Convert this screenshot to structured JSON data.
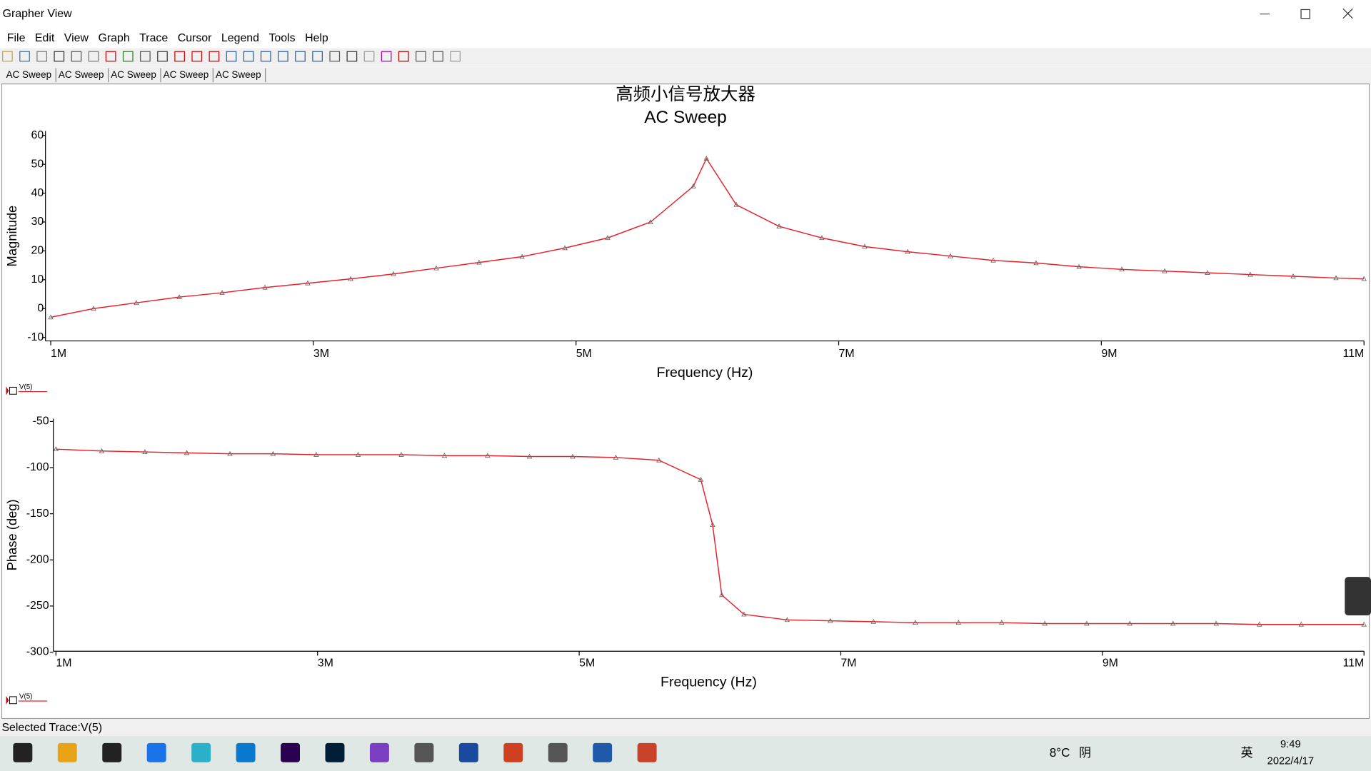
{
  "window": {
    "title": "Grapher View"
  },
  "menu": [
    "File",
    "Edit",
    "View",
    "Graph",
    "Trace",
    "Cursor",
    "Legend",
    "Tools",
    "Help"
  ],
  "tabs": [
    "AC Sweep",
    "AC Sweep",
    "AC Sweep",
    "AC Sweep",
    "AC Sweep"
  ],
  "graph": {
    "title": "高频小信号放大器",
    "subtitle": "AC Sweep"
  },
  "chart_data": [
    {
      "type": "line",
      "xlabel": "Frequency (Hz)",
      "ylabel": "Magnitude",
      "xlim": [
        960000,
        11000000
      ],
      "ylim": [
        -11.2,
        61.5
      ],
      "xticks": [
        {
          "value": 1000000,
          "label": "1M"
        },
        {
          "value": 3000000,
          "label": "3M"
        },
        {
          "value": 5000000,
          "label": "5M"
        },
        {
          "value": 7000000,
          "label": "7M"
        },
        {
          "value": 9000000,
          "label": "9M"
        },
        {
          "value": 11000000,
          "label": "11M"
        }
      ],
      "yticks": [
        -10,
        0,
        10,
        20,
        30,
        40,
        50,
        60
      ],
      "legend": "bottom-left",
      "x": [
        1000000,
        1326000,
        1652000,
        1979000,
        2305000,
        2631000,
        2957000,
        3284000,
        3610000,
        3936000,
        4262000,
        4589000,
        4915000,
        5241000,
        5567000,
        5893000,
        5993000,
        6220000,
        6546000,
        6872000,
        7198000,
        7525000,
        7851000,
        8177000,
        8503000,
        8830000,
        9156000,
        9482000,
        9808000,
        10134000,
        10461000,
        10787000,
        11000000
      ],
      "series": [
        {
          "name": "V(5)",
          "color": "#e8202a",
          "values": [
            -3,
            0,
            2,
            4,
            5.5,
            7.3,
            8.8,
            10.3,
            12,
            14,
            16,
            18,
            21,
            24.5,
            30,
            42.4,
            52,
            36,
            28.5,
            24.5,
            21.5,
            19.7,
            18.2,
            16.7,
            15.8,
            14.5,
            13.6,
            13,
            12.4,
            11.8,
            11.2,
            10.6,
            10.3
          ]
        }
      ]
    },
    {
      "type": "line",
      "xlabel": "Frequency (Hz)",
      "ylabel": "Phase (deg)",
      "xlim": [
        980000,
        11000000
      ],
      "ylim": [
        -299,
        -47
      ],
      "xticks": [
        {
          "value": 1000000,
          "label": "1M"
        },
        {
          "value": 3000000,
          "label": "3M"
        },
        {
          "value": 5000000,
          "label": "5M"
        },
        {
          "value": 7000000,
          "label": "7M"
        },
        {
          "value": 9000000,
          "label": "9M"
        },
        {
          "value": 11000000,
          "label": "11M"
        }
      ],
      "yticks": [
        -50,
        -100,
        -150,
        -200,
        -250,
        -300
      ],
      "legend": "bottom-left",
      "x": [
        1000000,
        1350000,
        1680000,
        2000000,
        2330000,
        2660000,
        2990000,
        3310000,
        3640000,
        3970000,
        4300000,
        4620000,
        4950000,
        5280000,
        5610000,
        5930000,
        6020000,
        6090000,
        6260000,
        6590000,
        6920000,
        7250000,
        7570000,
        7900000,
        8230000,
        8560000,
        8880000,
        9210000,
        9540000,
        9870000,
        10200000,
        10520000,
        11000000
      ],
      "series": [
        {
          "name": "V(5)",
          "color": "#e8202a",
          "values": [
            -80,
            -82,
            -83,
            -84,
            -85,
            -85,
            -86,
            -86,
            -86,
            -87,
            -87,
            -88,
            -88,
            -89,
            -92,
            -113,
            -162,
            -238,
            -259,
            -265,
            -266,
            -267,
            -268,
            -268,
            -268,
            -269,
            -269,
            -269,
            -269,
            -269,
            -270,
            -270,
            -270
          ]
        }
      ]
    }
  ],
  "status": "Selected Trace:V(5)",
  "taskbar": {
    "weather": "8°C",
    "condition": "阴",
    "ime": "英",
    "time": "9:49",
    "date": "2022/4/17"
  }
}
